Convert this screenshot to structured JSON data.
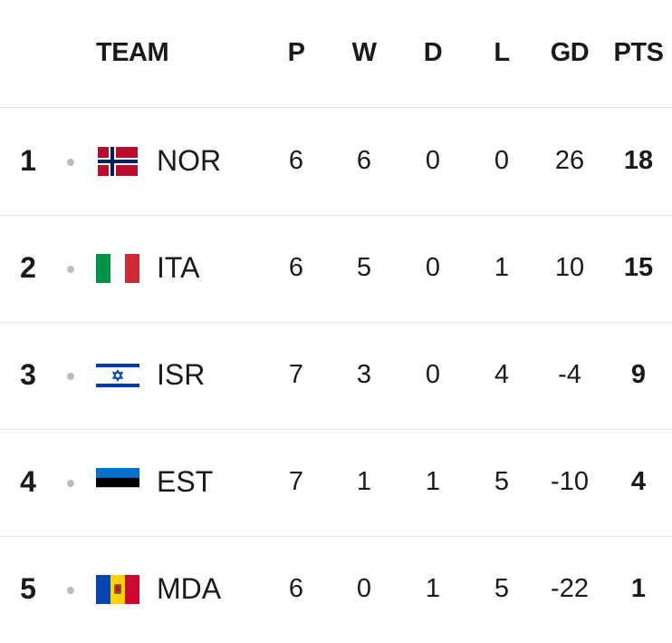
{
  "header": {
    "team": "TEAM",
    "p": "P",
    "w": "W",
    "d": "D",
    "l": "L",
    "gd": "GD",
    "pts": "PTS"
  },
  "rows": [
    {
      "rank": "1",
      "team": "NOR",
      "flag": "norway-flag-icon",
      "p": "6",
      "w": "6",
      "d": "0",
      "l": "0",
      "gd": "26",
      "pts": "18"
    },
    {
      "rank": "2",
      "team": "ITA",
      "flag": "italy-flag-icon",
      "p": "6",
      "w": "5",
      "d": "0",
      "l": "1",
      "gd": "10",
      "pts": "15"
    },
    {
      "rank": "3",
      "team": "ISR",
      "flag": "israel-flag-icon",
      "p": "7",
      "w": "3",
      "d": "0",
      "l": "4",
      "gd": "-4",
      "pts": "9"
    },
    {
      "rank": "4",
      "team": "EST",
      "flag": "estonia-flag-icon",
      "p": "7",
      "w": "1",
      "d": "1",
      "l": "5",
      "gd": "-10",
      "pts": "4"
    },
    {
      "rank": "5",
      "team": "MDA",
      "flag": "moldova-flag-icon",
      "p": "6",
      "w": "0",
      "d": "1",
      "l": "5",
      "gd": "-22",
      "pts": "1"
    }
  ],
  "colors": {
    "divider": "#e6e6e6",
    "dot": "#b9bec6",
    "text": "#1a1a1a"
  }
}
